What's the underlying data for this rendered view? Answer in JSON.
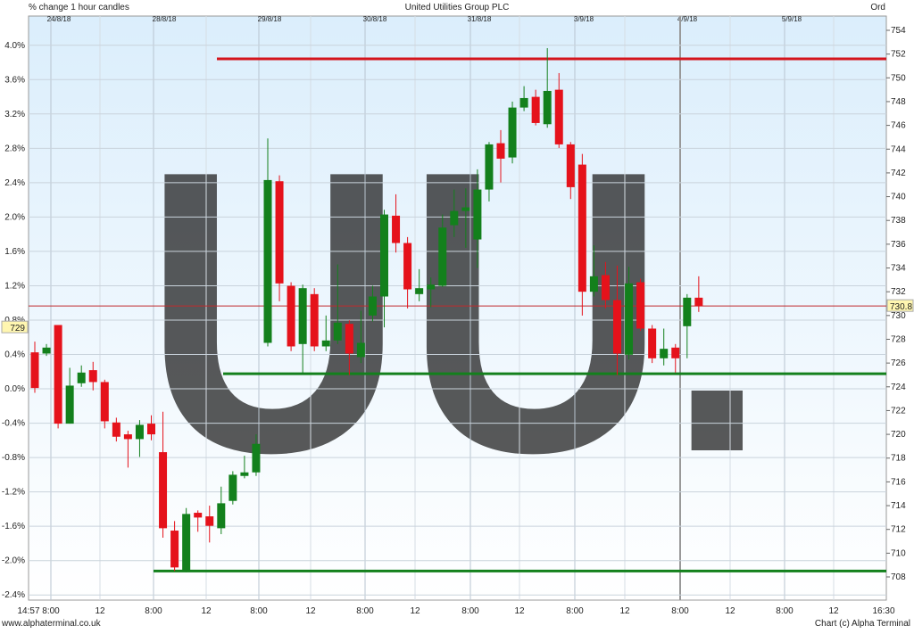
{
  "chart_data": {
    "type": "candlestick",
    "title": "United Utilities Group PLC",
    "subtitle": "% change 1 hour candles",
    "share_class": "Ord",
    "watermark": "UU.",
    "footer_left": "www.alphaterminal.co.uk",
    "footer_right": "Chart (c) Alpha Terminal",
    "date_labels": [
      "24/8/18",
      "28/8/18",
      "29/8/18",
      "30/8/18",
      "31/8/18",
      "3/9/18",
      "4/9/18",
      "5/9/18"
    ],
    "xtick_labels": [
      "14:57",
      "8:00",
      "12",
      "8:00",
      "12",
      "8:00",
      "12",
      "8:00",
      "12",
      "8:00",
      "12",
      "8:00",
      "12",
      "8:00",
      "12",
      "8:00",
      "12",
      "16:30"
    ],
    "up_color": "#13801c",
    "down_color": "#e5121b",
    "open": [
      726.9,
      726.8,
      729.2,
      720.9,
      724.3,
      725.4,
      724.4,
      721.0,
      720.0,
      719.6,
      720.9,
      718.5,
      711.9,
      708.5,
      713.4,
      713.1,
      712.1,
      714.4,
      716.5,
      716.8,
      727.7,
      741.3,
      732.5,
      727.6,
      731.8,
      727.4,
      727.9,
      729.3,
      726.5,
      730.0,
      731.6,
      738.4,
      736.1,
      731.8,
      732.2,
      732.5,
      737.6,
      738.8,
      736.4,
      740.6,
      744.5,
      743.3,
      747.5,
      748.4,
      746.1,
      749.0,
      744.4,
      742.7,
      732.0,
      733.4,
      731.3,
      726.7,
      732.8,
      728.9,
      726.4,
      727.3,
      729.1,
      731.5
    ],
    "high": [
      727.8,
      727.6,
      729.2,
      725.6,
      725.8,
      726.1,
      724.6,
      721.4,
      720.3,
      721.2,
      721.6,
      721.9,
      712.7,
      713.8,
      713.6,
      714.0,
      715.6,
      716.9,
      718.2,
      720.0,
      744.9,
      741.8,
      732.8,
      732.6,
      732.3,
      730.0,
      734.3,
      729.6,
      730.4,
      732.5,
      738.9,
      740.2,
      736.6,
      733.9,
      733.2,
      738.5,
      740.6,
      740.7,
      742.3,
      744.6,
      745.6,
      748.0,
      749.3,
      749.0,
      752.5,
      750.4,
      744.6,
      743.6,
      735.9,
      734.5,
      734.2,
      734.1,
      733.1,
      729.2,
      728.9,
      727.6,
      731.8,
      733.3
    ],
    "low": [
      723.5,
      726.6,
      720.5,
      720.9,
      724.0,
      723.7,
      720.5,
      719.4,
      717.2,
      718.1,
      719.5,
      711.3,
      708.5,
      708.4,
      711.8,
      710.9,
      711.6,
      714.1,
      716.3,
      716.5,
      727.4,
      731.2,
      727.0,
      725.1,
      727.0,
      727.0,
      727.6,
      725.0,
      726.0,
      729.5,
      729.0,
      735.3,
      730.6,
      731.2,
      730.7,
      732.4,
      736.6,
      735.7,
      734.0,
      739.6,
      741.2,
      742.8,
      747.2,
      746.0,
      745.8,
      744.1,
      739.8,
      730.0,
      731.6,
      730.6,
      725.0,
      726.3,
      728.7,
      726.0,
      725.8,
      725.2,
      726.4,
      730.3
    ],
    "close": [
      723.9,
      727.3,
      720.9,
      724.1,
      725.2,
      724.4,
      721.1,
      719.8,
      719.6,
      720.8,
      720.0,
      712.1,
      708.8,
      713.3,
      713.0,
      712.3,
      714.2,
      716.6,
      716.8,
      719.2,
      741.4,
      732.7,
      727.4,
      732.3,
      727.4,
      727.9,
      729.4,
      726.8,
      727.7,
      731.6,
      738.5,
      736.1,
      732.2,
      732.3,
      732.6,
      737.4,
      738.8,
      739.1,
      740.6,
      744.4,
      743.2,
      747.5,
      748.3,
      746.2,
      748.9,
      744.4,
      740.8,
      732.0,
      733.3,
      731.3,
      726.8,
      732.7,
      728.9,
      726.4,
      727.2,
      726.4,
      731.5,
      730.8
    ],
    "axis": "y2",
    "ylim": [
      -2.46,
      4.34
    ],
    "yticks": [
      {
        "value": 4.0,
        "label": "4.0%"
      },
      {
        "value": 3.6,
        "label": "3.6%"
      },
      {
        "value": 3.2,
        "label": "3.2%"
      },
      {
        "value": 2.8,
        "label": "2.8%"
      },
      {
        "value": 2.4,
        "label": "2.4%"
      },
      {
        "value": 2.0,
        "label": "2.0%"
      },
      {
        "value": 1.6,
        "label": "1.6%"
      },
      {
        "value": 1.2,
        "label": "1.2%"
      },
      {
        "value": 0.8,
        "label": "0.8%"
      },
      {
        "value": 0.4,
        "label": "0.4%"
      },
      {
        "value": 0.0,
        "label": "0.0%"
      },
      {
        "value": -0.4,
        "label": "-0.4%"
      },
      {
        "value": -0.8,
        "label": "-0.8%"
      },
      {
        "value": -1.2,
        "label": "-1.2%"
      },
      {
        "value": -1.6,
        "label": "-1.6%"
      },
      {
        "value": -2.0,
        "label": "-2.0%"
      },
      {
        "value": -2.4,
        "label": "-2.4%"
      }
    ],
    "y2lim": [
      706.05,
      755.2
    ],
    "y2ticks": [
      708,
      710,
      712,
      714,
      716,
      718,
      720,
      722,
      724,
      726,
      728,
      730,
      732,
      734,
      736,
      738,
      740,
      742,
      744,
      746,
      748,
      750,
      752,
      754
    ],
    "grid": true,
    "levels": [
      {
        "value": 751.6,
        "color": "#d4151d"
      },
      {
        "value": 725.1,
        "color": "#13801c"
      },
      {
        "value": 708.5,
        "color": "#13801c"
      }
    ],
    "last_price": 730.8,
    "reference_price": 729
  }
}
